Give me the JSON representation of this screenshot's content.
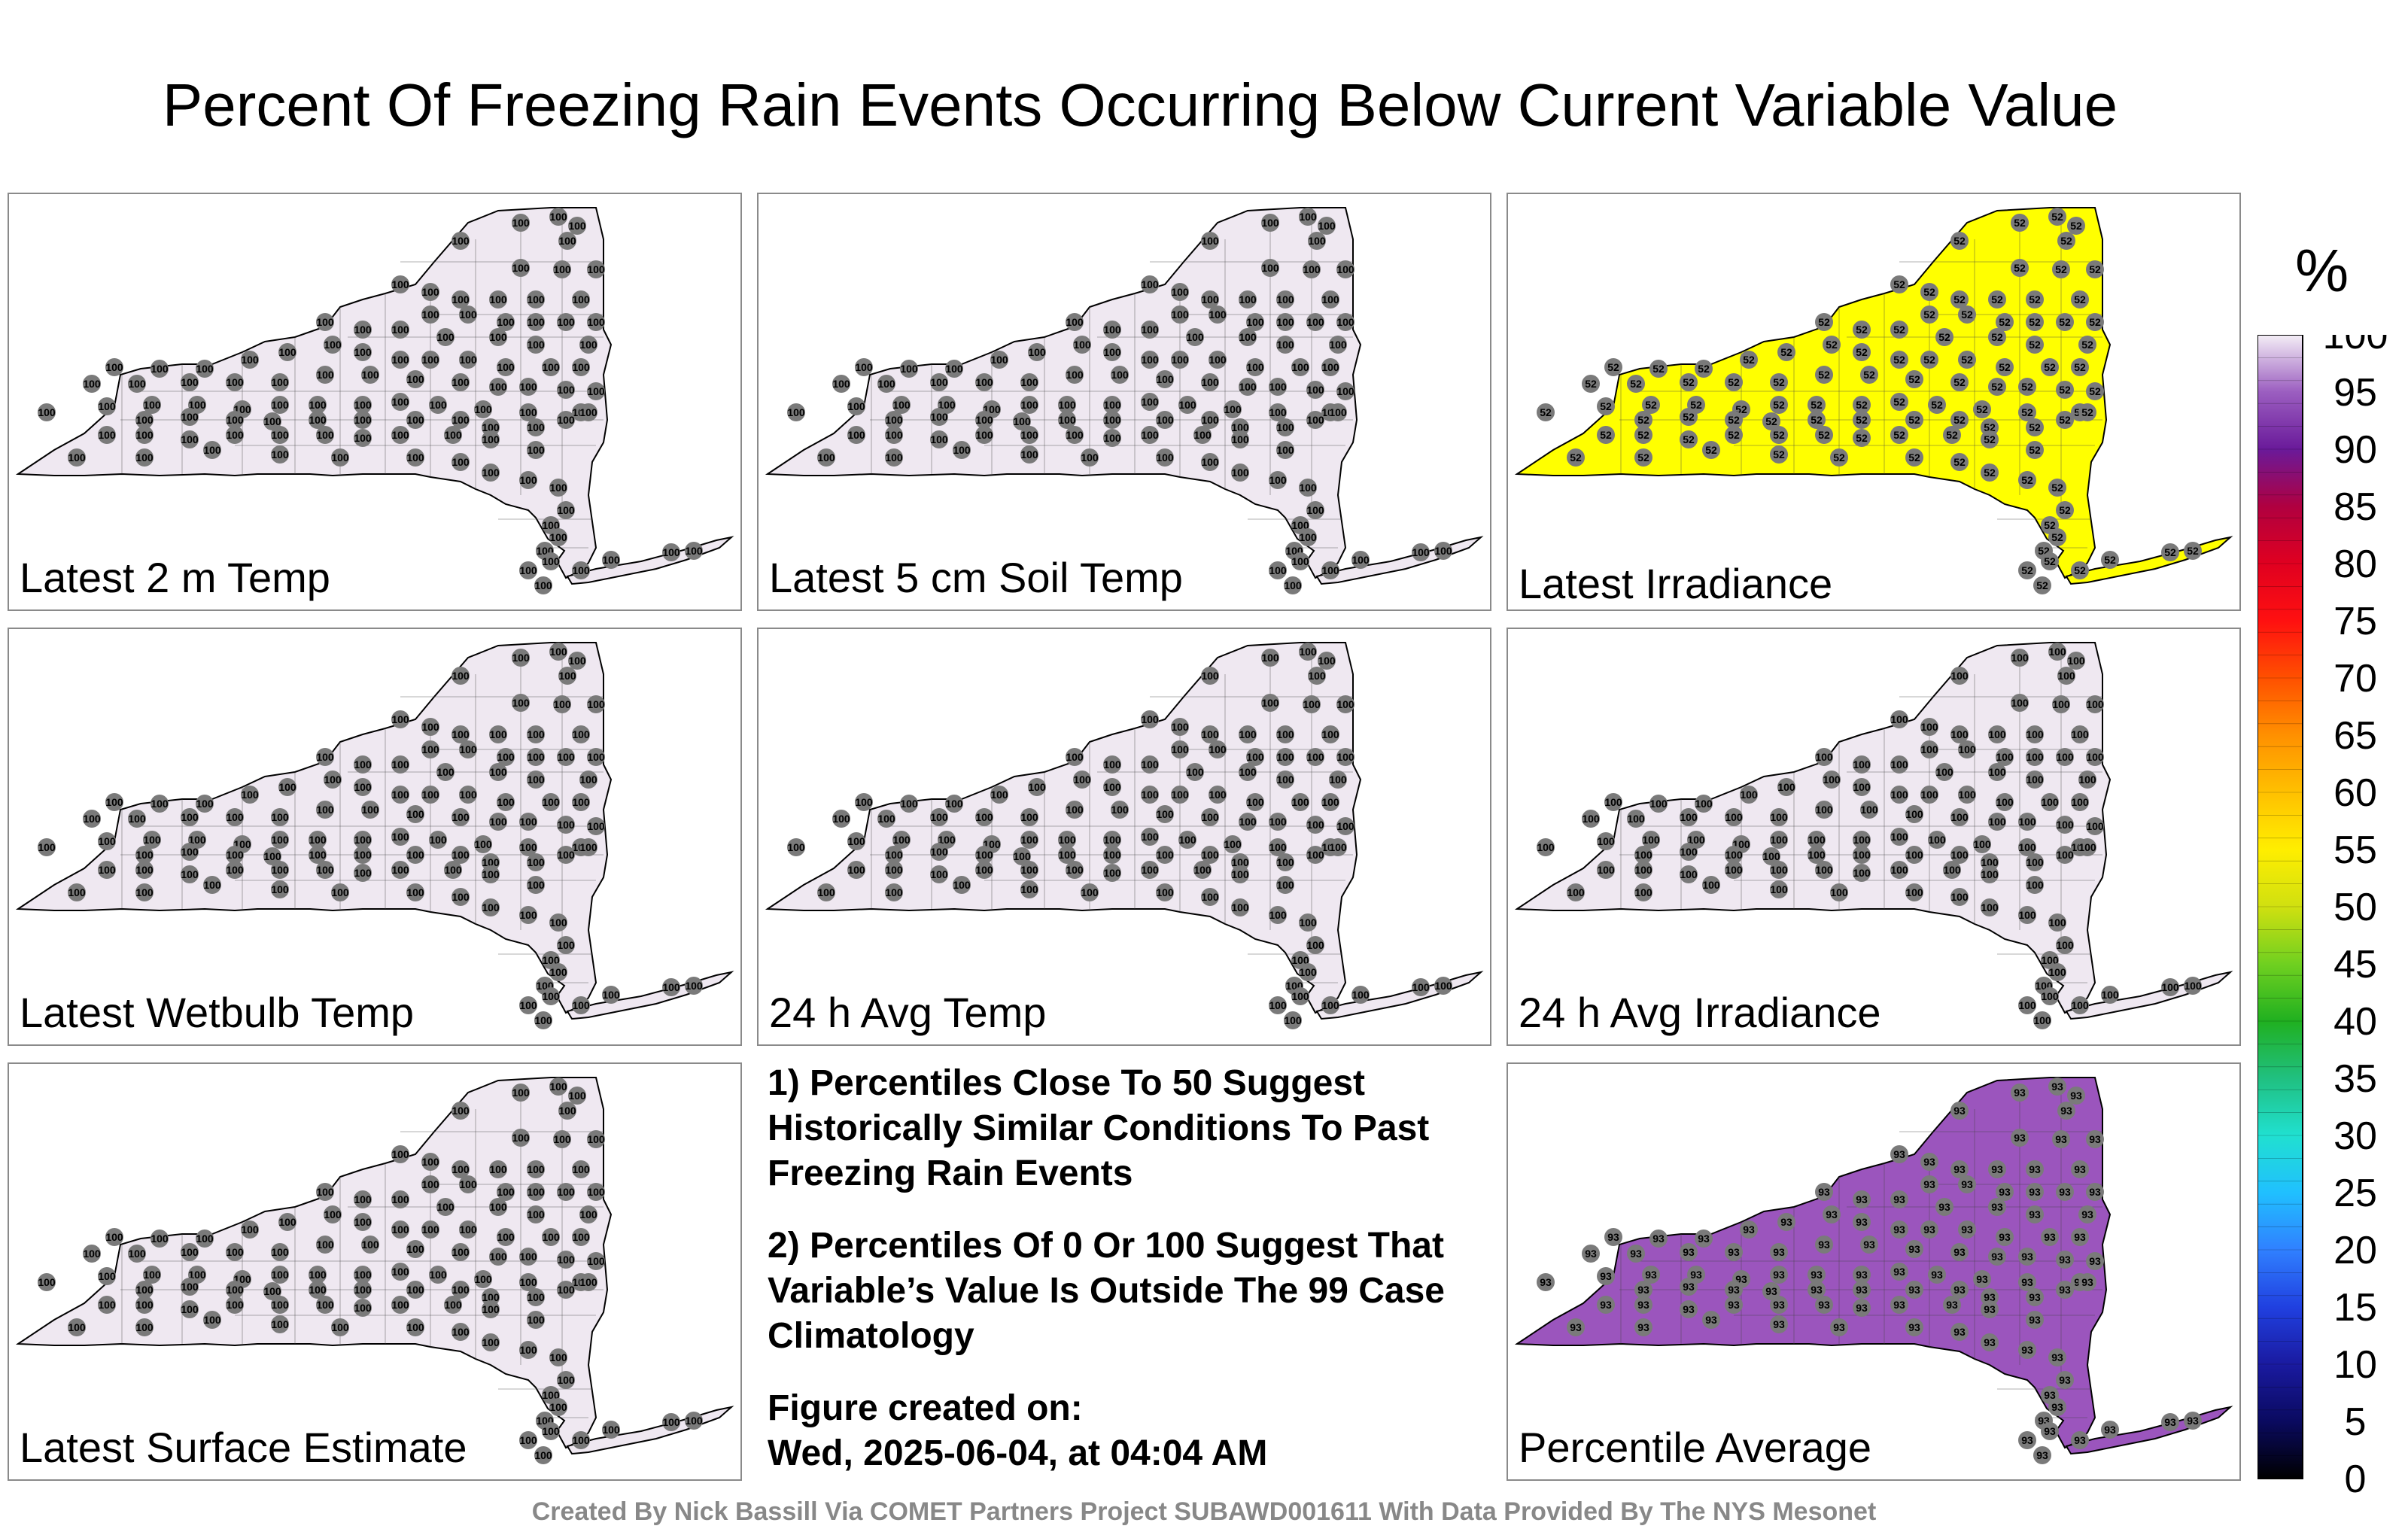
{
  "title": "Percent Of Freezing Rain Events Occurring Below Current Variable Value",
  "colorbar": {
    "unit": "%",
    "ticks": [
      0,
      5,
      10,
      15,
      20,
      25,
      30,
      35,
      40,
      45,
      50,
      55,
      60,
      65,
      70,
      75,
      80,
      85,
      90,
      95,
      100
    ],
    "range": [
      0,
      100
    ]
  },
  "panels": [
    {
      "label": "Latest 2 m Temp",
      "value": "100",
      "fill": "#efe8f1"
    },
    {
      "label": "Latest 5 cm Soil Temp",
      "value": "100",
      "fill": "#efe8f1"
    },
    {
      "label": "Latest Irradiance",
      "value": "52",
      "fill": "#ffff00"
    },
    {
      "label": "Latest Wetbulb Temp",
      "value": "100",
      "fill": "#efe8f1"
    },
    {
      "label": "24 h Avg Temp",
      "value": "100",
      "fill": "#efe8f1"
    },
    {
      "label": "24 h Avg Irradiance",
      "value": "100",
      "fill": "#efe8f1"
    },
    {
      "label": "Latest Surface Estimate",
      "value": "100",
      "fill": "#efe8f1"
    },
    {
      "label": "Percentile Average",
      "value": "93",
      "fill": "#9b55bd"
    }
  ],
  "notes": {
    "note1": "1) Percentiles Close To 50 Suggest Historically Similar Conditions To Past Freezing Rain Events",
    "note2": "2) Percentiles Of 0 Or 100 Suggest That Variable’s Value Is Outside The 99 Case Climatology",
    "created_label": "Figure created on:",
    "created_value": "Wed, 2025-06-04, at 04:04 AM"
  },
  "credit": "Created By Nick Bassill Via COMET Partners Project SUBAWD001611 With Data Provided By The NYS Mesonet"
}
